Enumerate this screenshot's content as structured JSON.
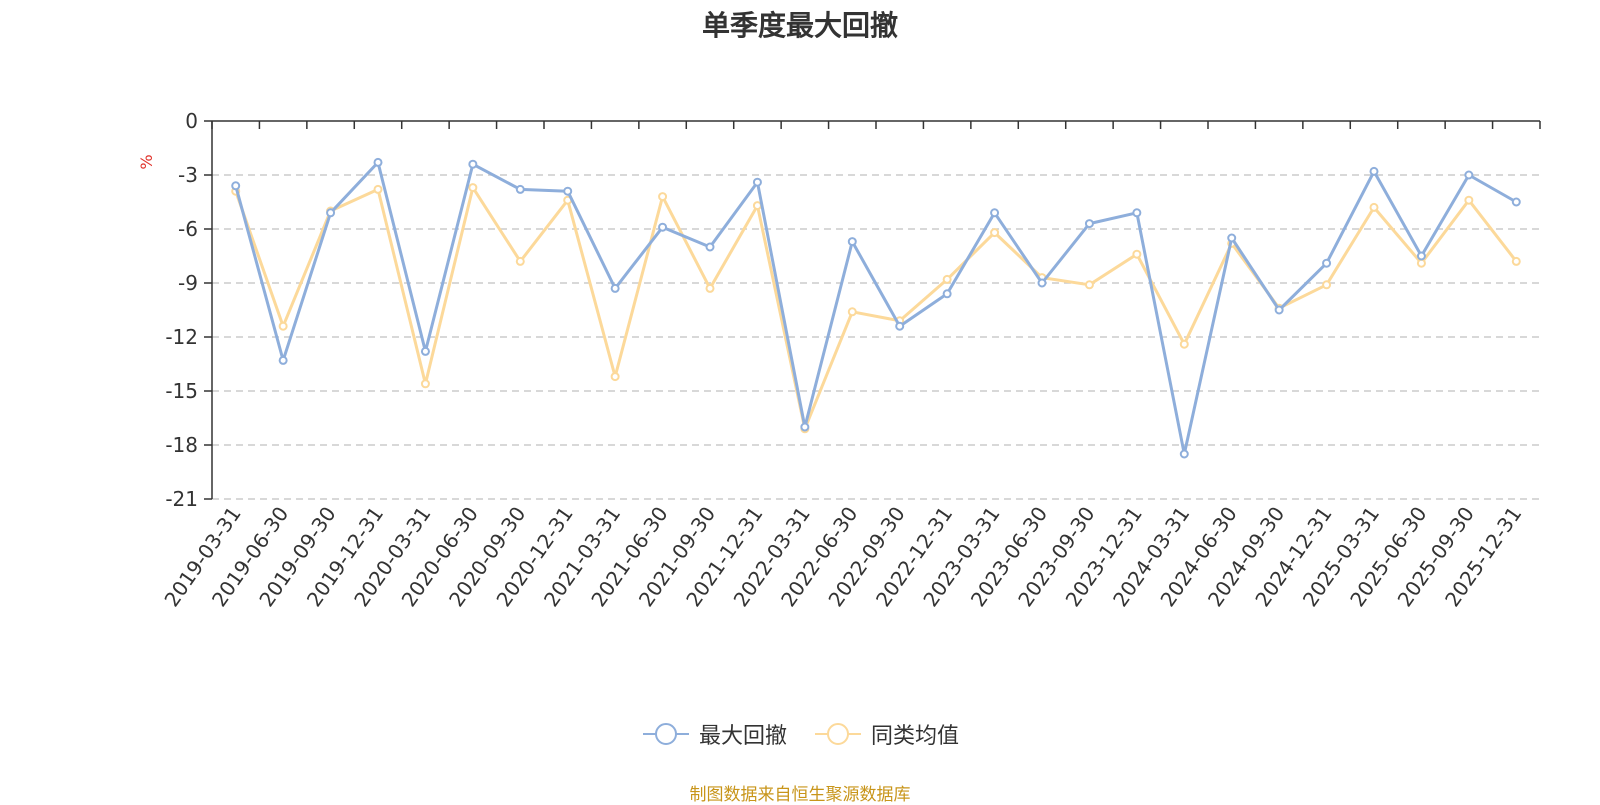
{
  "chart_data": {
    "type": "line",
    "title": "单季度最大回撤",
    "ylabel": "%",
    "ylim": [
      -21,
      0
    ],
    "yticks": [
      0,
      -3,
      -6,
      -9,
      -12,
      -15,
      -18,
      -21
    ],
    "grid": true,
    "legend_position": "bottom",
    "categories": [
      "2019-03-31",
      "2019-06-30",
      "2019-09-30",
      "2019-12-31",
      "2020-03-31",
      "2020-06-30",
      "2020-09-30",
      "2020-12-31",
      "2021-03-31",
      "2021-06-30",
      "2021-09-30",
      "2021-12-31",
      "2022-03-31",
      "2022-06-30",
      "2022-09-30",
      "2022-12-31",
      "2023-03-31",
      "2023-06-30",
      "2023-09-30",
      "2023-12-31",
      "2024-03-31",
      "2024-06-30",
      "2024-09-30",
      "2024-12-31",
      "2025-03-31",
      "2025-06-30",
      "2025-09-30",
      "2025-12-31"
    ],
    "series": [
      {
        "name": "最大回撤",
        "color": "#8eaedb",
        "values": [
          -3.6,
          -13.3,
          -5.1,
          -2.3,
          -12.8,
          -2.4,
          -3.8,
          -3.9,
          -9.3,
          -5.9,
          -7.0,
          -3.4,
          -17.0,
          -6.7,
          -11.4,
          -9.6,
          -5.1,
          -9.0,
          -5.7,
          -5.1,
          -18.5,
          -6.5,
          -10.5,
          -7.9,
          -2.8,
          -7.5,
          -3.0,
          -4.5
        ]
      },
      {
        "name": "同类均值",
        "color": "#fcd99a",
        "values": [
          -3.9,
          -11.4,
          -5.0,
          -3.8,
          -14.6,
          -3.7,
          -7.8,
          -4.4,
          -14.2,
          -4.2,
          -9.3,
          -4.7,
          -17.1,
          -10.6,
          -11.1,
          -8.8,
          -6.2,
          -8.7,
          -9.1,
          -7.4,
          -12.4,
          -6.8,
          -10.4,
          -9.1,
          -4.8,
          -7.9,
          -4.4,
          -7.8
        ]
      }
    ]
  },
  "source_text": "制图数据来自恒生聚源数据库"
}
